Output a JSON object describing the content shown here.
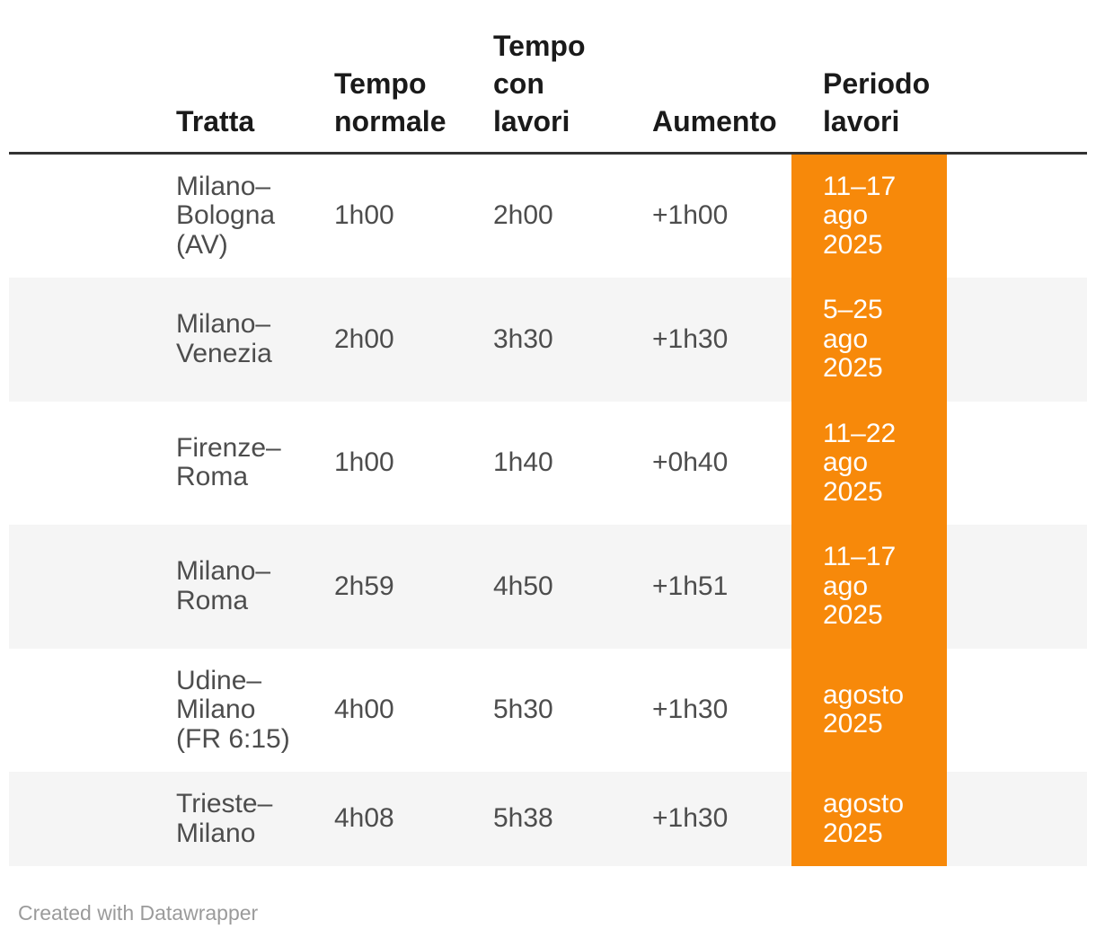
{
  "chart_data": {
    "type": "table",
    "columns": [
      "Tratta",
      "Tempo normale",
      "Tempo con lavori",
      "Aumento",
      "Periodo lavori"
    ],
    "rows": [
      [
        "Milano–Bologna (AV)",
        "1h00",
        "2h00",
        "+1h00",
        "11–17 ago 2025"
      ],
      [
        "Milano–Venezia",
        "2h00",
        "3h30",
        "+1h30",
        "5–25 ago 2025"
      ],
      [
        "Firenze–Roma",
        "1h00",
        "1h40",
        "+0h40",
        "11–22 ago 2025"
      ],
      [
        "Milano–Roma",
        "2h59",
        "4h50",
        "+1h51",
        "11–17 ago 2025"
      ],
      [
        "Udine–Milano (FR 6:15)",
        "4h00",
        "5h30",
        "+1h30",
        "agosto 2025"
      ],
      [
        "Trieste–Milano",
        "4h08",
        "5h38",
        "+1h30",
        "agosto 2025"
      ]
    ],
    "highlight_column": "Periodo lavori",
    "layout_hints": "Periodo lavori column has solid orange background with white text; rows alternate white and light gray; thick dark rule under header"
  },
  "header": {
    "col_tratta": "Tratta",
    "col_tempo_normale": "Tempo\nnormale",
    "col_tempo_con_lavori": "Tempo\ncon\nlavori",
    "col_aumento": "Aumento",
    "col_periodo_lavori": "Periodo\nlavori"
  },
  "rows": [
    {
      "tratta": "Milano–\nBologna\n(AV)",
      "tempo_normale": "1h00",
      "tempo_con_lavori": "2h00",
      "aumento": "+1h00",
      "periodo_lavori": "11–17\nago\n2025"
    },
    {
      "tratta": "Milano–\nVenezia",
      "tempo_normale": "2h00",
      "tempo_con_lavori": "3h30",
      "aumento": "+1h30",
      "periodo_lavori": "5–25\nago\n2025"
    },
    {
      "tratta": "Firenze–\nRoma",
      "tempo_normale": "1h00",
      "tempo_con_lavori": "1h40",
      "aumento": "+0h40",
      "periodo_lavori": "11–22\nago\n2025"
    },
    {
      "tratta": "Milano–\nRoma",
      "tempo_normale": "2h59",
      "tempo_con_lavori": "4h50",
      "aumento": "+1h51",
      "periodo_lavori": "11–17\nago\n2025"
    },
    {
      "tratta": "Udine–\nMilano\n(FR 6:15)",
      "tempo_normale": "4h00",
      "tempo_con_lavori": "5h30",
      "aumento": "+1h30",
      "periodo_lavori": "agosto\n2025"
    },
    {
      "tratta": "Trieste–\nMilano",
      "tempo_normale": "4h08",
      "tempo_con_lavori": "5h38",
      "aumento": "+1h30",
      "periodo_lavori": "agosto\n2025"
    }
  ],
  "footer": {
    "attribution": "Created with Datawrapper"
  },
  "colors": {
    "highlight": "#F7890A",
    "stripe": "#F5F5F5",
    "header_rule": "#333333",
    "header_text": "#1A1A1A",
    "body_text": "#4D4D4D",
    "highlight_text": "#FFFFFF",
    "footer_text": "#9B9B9B",
    "page_bg": "#FFFFFF"
  }
}
